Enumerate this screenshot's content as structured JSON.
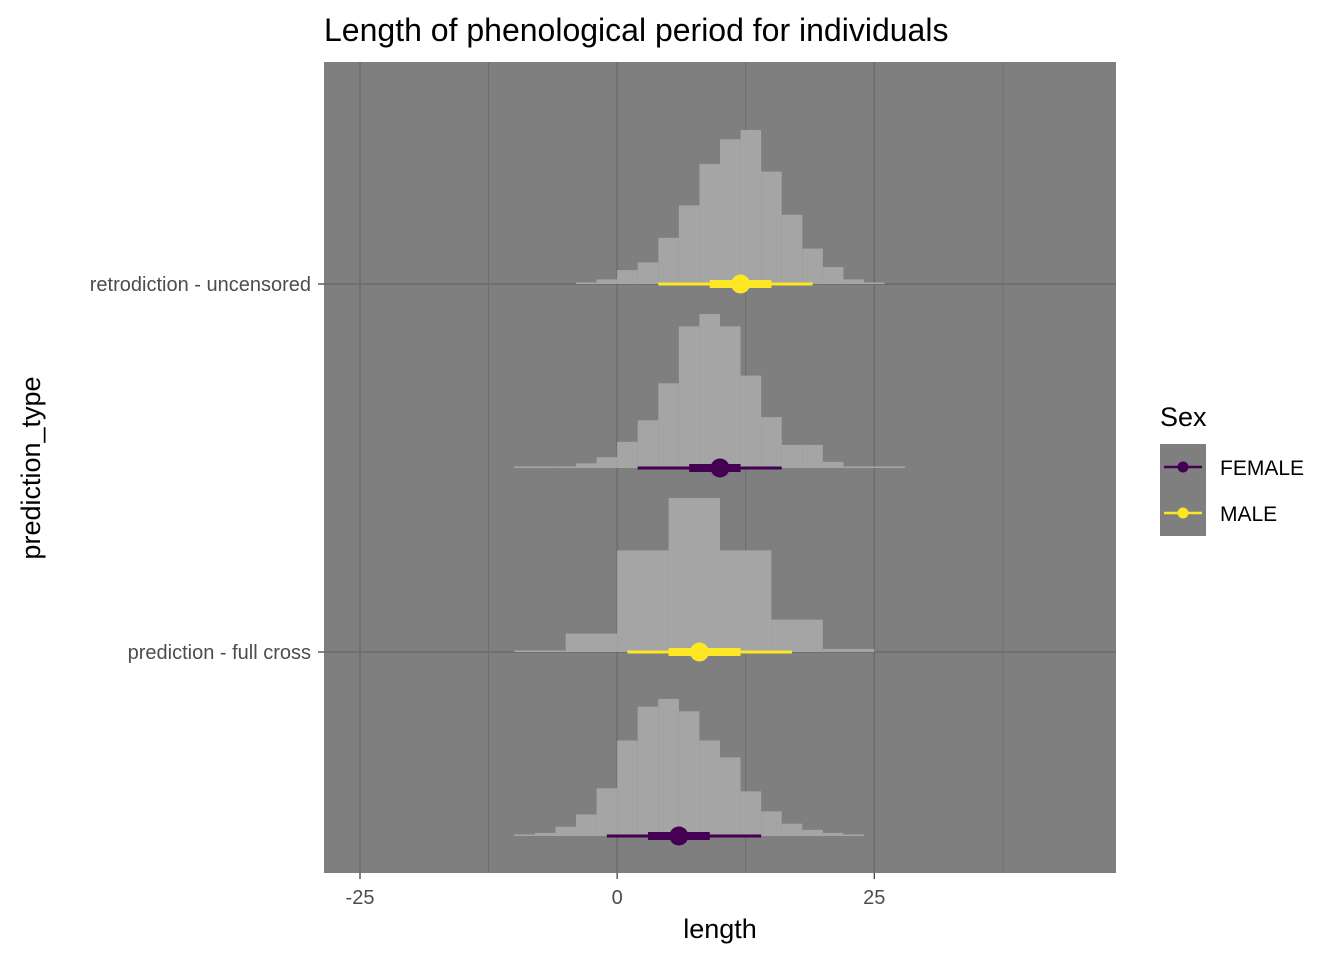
{
  "chart_data": {
    "type": "histogram-interval",
    "title": "Length of phenological period for individuals",
    "xlabel": "length",
    "ylabel": "prediction_type",
    "xlim": [
      -28.5,
      48.5
    ],
    "x_ticks": [
      -25,
      0,
      25
    ],
    "x_minor_ticks": [
      -12.5,
      12.5,
      37.5
    ],
    "y_categories": [
      "prediction - full cross",
      "retrodiction - uncensored"
    ],
    "grid": true,
    "legend": {
      "title": "Sex",
      "placement": "right",
      "entries": [
        {
          "label": "FEMALE",
          "color": "#440154"
        },
        {
          "label": "MALE",
          "color": "#FDE725"
        }
      ]
    },
    "colors": {
      "panel": "#7f7f7f",
      "grid": "#6a6a6a",
      "histogram": "#a5a5a5"
    },
    "series": [
      {
        "category": "retrodiction - uncensored",
        "sex": "MALE",
        "band": "upper",
        "bins": [
          {
            "x0": -4,
            "x1": -2,
            "density": 0.01
          },
          {
            "x0": -2,
            "x1": 0,
            "density": 0.03
          },
          {
            "x0": 0,
            "x1": 2,
            "density": 0.09
          },
          {
            "x0": 2,
            "x1": 4,
            "density": 0.14
          },
          {
            "x0": 4,
            "x1": 6,
            "density": 0.3
          },
          {
            "x0": 6,
            "x1": 8,
            "density": 0.51
          },
          {
            "x0": 8,
            "x1": 10,
            "density": 0.78
          },
          {
            "x0": 10,
            "x1": 12,
            "density": 0.94
          },
          {
            "x0": 12,
            "x1": 14,
            "density": 1.0
          },
          {
            "x0": 14,
            "x1": 16,
            "density": 0.73
          },
          {
            "x0": 16,
            "x1": 18,
            "density": 0.45
          },
          {
            "x0": 18,
            "x1": 20,
            "density": 0.23
          },
          {
            "x0": 20,
            "x1": 22,
            "density": 0.11
          },
          {
            "x0": 22,
            "x1": 24,
            "density": 0.03
          },
          {
            "x0": 24,
            "x1": 26,
            "density": 0.01
          }
        ],
        "point": 12,
        "interval_66": [
          9,
          15
        ],
        "interval_95": [
          4,
          19
        ]
      },
      {
        "category": "retrodiction - uncensored",
        "sex": "FEMALE",
        "band": "lower",
        "bins": [
          {
            "x0": -10,
            "x1": -6,
            "density": 0.01
          },
          {
            "x0": -6,
            "x1": -4,
            "density": 0.01
          },
          {
            "x0": -4,
            "x1": -2,
            "density": 0.03
          },
          {
            "x0": -2,
            "x1": 0,
            "density": 0.07
          },
          {
            "x0": 0,
            "x1": 2,
            "density": 0.17
          },
          {
            "x0": 2,
            "x1": 4,
            "density": 0.31
          },
          {
            "x0": 4,
            "x1": 6,
            "density": 0.55
          },
          {
            "x0": 6,
            "x1": 8,
            "density": 0.92
          },
          {
            "x0": 8,
            "x1": 10,
            "density": 1.0
          },
          {
            "x0": 10,
            "x1": 12,
            "density": 0.92
          },
          {
            "x0": 12,
            "x1": 14,
            "density": 0.6
          },
          {
            "x0": 14,
            "x1": 16,
            "density": 0.33
          },
          {
            "x0": 16,
            "x1": 18,
            "density": 0.15
          },
          {
            "x0": 18,
            "x1": 20,
            "density": 0.15
          },
          {
            "x0": 20,
            "x1": 22,
            "density": 0.04
          },
          {
            "x0": 22,
            "x1": 24,
            "density": 0.01
          },
          {
            "x0": 24,
            "x1": 28,
            "density": 0.01
          }
        ],
        "point": 10,
        "interval_66": [
          7,
          12
        ],
        "interval_95": [
          2,
          16
        ]
      },
      {
        "category": "prediction - full cross",
        "sex": "MALE",
        "band": "upper",
        "bins": [
          {
            "x0": -10,
            "x1": -5,
            "density": 0.01
          },
          {
            "x0": -5,
            "x1": 0,
            "density": 0.12
          },
          {
            "x0": 0,
            "x1": 5,
            "density": 0.66
          },
          {
            "x0": 5,
            "x1": 10,
            "density": 1.0
          },
          {
            "x0": 10,
            "x1": 15,
            "density": 0.66
          },
          {
            "x0": 15,
            "x1": 20,
            "density": 0.21
          },
          {
            "x0": 20,
            "x1": 25,
            "density": 0.02
          }
        ],
        "point": 8,
        "interval_66": [
          5,
          12
        ],
        "interval_95": [
          1,
          17
        ]
      },
      {
        "category": "prediction - full cross",
        "sex": "FEMALE",
        "band": "lower",
        "bins": [
          {
            "x0": -10,
            "x1": -8,
            "density": 0.01
          },
          {
            "x0": -8,
            "x1": -6,
            "density": 0.02
          },
          {
            "x0": -6,
            "x1": -4,
            "density": 0.06
          },
          {
            "x0": -4,
            "x1": -2,
            "density": 0.14
          },
          {
            "x0": -2,
            "x1": 0,
            "density": 0.31
          },
          {
            "x0": 0,
            "x1": 2,
            "density": 0.62
          },
          {
            "x0": 2,
            "x1": 4,
            "density": 0.84
          },
          {
            "x0": 4,
            "x1": 6,
            "density": 0.89
          },
          {
            "x0": 6,
            "x1": 8,
            "density": 0.81
          },
          {
            "x0": 8,
            "x1": 10,
            "density": 0.62
          },
          {
            "x0": 10,
            "x1": 12,
            "density": 0.51
          },
          {
            "x0": 12,
            "x1": 14,
            "density": 0.29
          },
          {
            "x0": 14,
            "x1": 16,
            "density": 0.16
          },
          {
            "x0": 16,
            "x1": 18,
            "density": 0.08
          },
          {
            "x0": 18,
            "x1": 20,
            "density": 0.04
          },
          {
            "x0": 20,
            "x1": 22,
            "density": 0.02
          },
          {
            "x0": 22,
            "x1": 24,
            "density": 0.01
          }
        ],
        "point": 6,
        "interval_66": [
          3,
          9
        ],
        "interval_95": [
          -1,
          14
        ]
      }
    ]
  }
}
